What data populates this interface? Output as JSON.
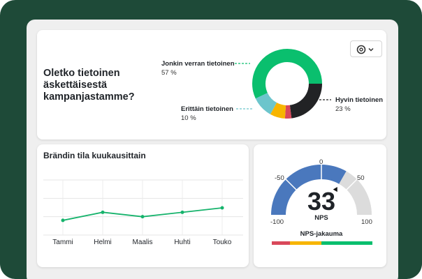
{
  "survey_card": {
    "question": "Oletko tietoinen äskettäisestä kampanjastamme?",
    "chart_type_button_icon": "donut-chart-icon",
    "dropdown_icon": "chevron-down-icon",
    "chart_data": {
      "type": "pie",
      "donut": true,
      "slices": [
        {
          "label": "Hyvin tietoinen",
          "value": 23,
          "value_label": "23 %",
          "color": "#222325"
        },
        {
          "label": "",
          "value": 3,
          "color": "#d9485a"
        },
        {
          "label": "",
          "value": 7,
          "color": "#f7b500"
        },
        {
          "label": "Erittäin tietoinen",
          "value": 10,
          "value_label": "10 %",
          "color": "#6cc5cc"
        },
        {
          "label": "Jonkin verran tietoinen",
          "value": 57,
          "value_label": "57 %",
          "color": "#0abf6e"
        }
      ]
    }
  },
  "trend_card": {
    "title": "Brändin tila kuukausittain",
    "chart_data": {
      "type": "line",
      "categories": [
        "Tammi",
        "Helmi",
        "Maalis",
        "Huhti",
        "Touko"
      ],
      "values": [
        0.8,
        1.24,
        1.0,
        1.24,
        1.48
      ],
      "ylim": [
        0,
        3
      ],
      "grid": true,
      "color": "#16b36c"
    }
  },
  "nps_card": {
    "score": "33",
    "score_label": "NPS",
    "ticks": [
      "-100",
      "-50",
      "0",
      "50",
      "100"
    ],
    "distribution_label": "NPS-jakauma",
    "chart_data": {
      "type": "gauge",
      "min": -100,
      "max": 100,
      "value": 33,
      "fill_color": "#4a78bd",
      "track_color": "#dcdcdc",
      "distribution": [
        {
          "value": 18,
          "color": "#d9485a"
        },
        {
          "value": 31,
          "color": "#f7b500"
        },
        {
          "value": 51,
          "color": "#0abf6e"
        }
      ]
    }
  }
}
